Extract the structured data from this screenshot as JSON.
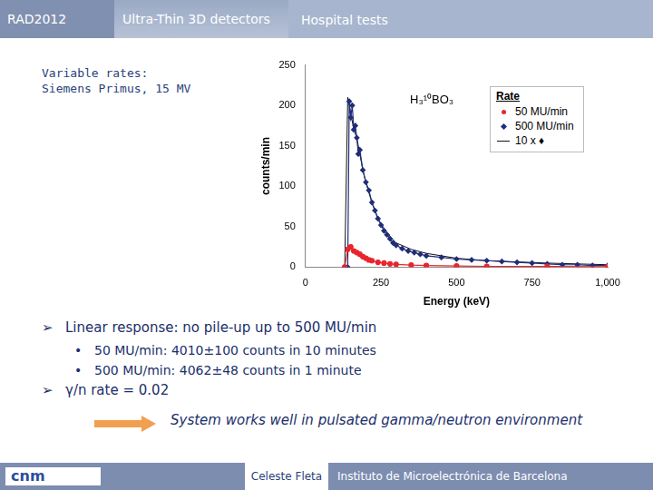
{
  "slide": {
    "header": {
      "left": "RAD2012",
      "center": "Ultra-Thin 3D detectors",
      "right": "Hospital tests"
    },
    "subtitle": [
      "Variable rates:",
      "Siemens Primus, 15 MV"
    ],
    "bullets": [
      {
        "text": "Linear response: no pile-up up to 500 MU/min",
        "sub": [
          "50 MU/min: 4010±100 counts in 10 minutes",
          "500 MU/min: 4062±48 counts in 1 minute"
        ]
      },
      {
        "text": "γ/n rate = 0.02",
        "sub": []
      }
    ],
    "conclusion": "System works well in pulsated gamma/neutron environment",
    "footer": {
      "logo": "cnm",
      "author": "Celeste Fleta",
      "institute": "Instituto de Microelectrónica de Barcelona"
    }
  },
  "chart_data": {
    "type": "line",
    "annotation": "H₃¹⁰BO₃",
    "x_label": "Energy (keV)",
    "y_label": "counts/min",
    "legend_title": "Rate",
    "legend": "upper right",
    "xlim": [
      0,
      1000
    ],
    "xticks": [
      0,
      250,
      500,
      750,
      1000
    ],
    "ylim": [
      0,
      250
    ],
    "yticks": [
      0,
      50,
      100,
      150,
      200,
      250
    ],
    "grid": false,
    "series": [
      {
        "name": "50 MU/min",
        "color": "#e8262b",
        "marker": "circle",
        "line_style": "solid",
        "x": [
          130,
          140,
          150,
          160,
          170,
          180,
          190,
          200,
          210,
          220,
          240,
          260,
          280,
          300,
          350,
          400,
          500,
          600,
          800,
          1000
        ],
        "values": [
          0,
          22,
          25,
          20,
          18,
          16,
          13,
          11,
          9,
          8,
          6,
          5,
          4,
          3.5,
          2.5,
          2,
          1.5,
          1,
          0.8,
          0.5
        ]
      },
      {
        "name": "500 MU/min",
        "color": "#1f2d7a",
        "marker": "diamond",
        "line_style": "solid",
        "x": [
          130,
          140,
          145,
          150,
          155,
          160,
          165,
          170,
          175,
          180,
          190,
          200,
          210,
          220,
          230,
          240,
          250,
          260,
          270,
          280,
          290,
          300,
          320,
          340,
          360,
          380,
          400,
          450,
          500,
          550,
          600,
          650,
          700,
          750,
          800,
          850,
          900,
          950,
          1000
        ],
        "values": [
          0,
          0,
          205,
          185,
          200,
          170,
          175,
          160,
          140,
          145,
          120,
          105,
          95,
          80,
          70,
          60,
          52,
          45,
          40,
          35,
          30,
          27,
          23,
          20,
          18,
          16,
          14,
          12,
          10,
          9,
          8,
          7,
          6,
          5,
          4,
          3,
          3,
          2,
          2
        ]
      },
      {
        "name": "10 x ♦",
        "color": "#111111",
        "marker": "none",
        "line_style": "solid",
        "x": [
          130,
          140,
          150,
          160,
          170,
          180,
          190,
          200,
          210,
          220,
          240,
          260,
          280,
          300,
          350,
          400,
          500,
          600,
          800,
          1000
        ],
        "values": [
          0,
          210,
          190,
          170,
          160,
          140,
          120,
          105,
          92,
          80,
          60,
          48,
          38,
          30,
          22,
          17,
          11,
          8,
          5,
          3
        ]
      }
    ]
  }
}
